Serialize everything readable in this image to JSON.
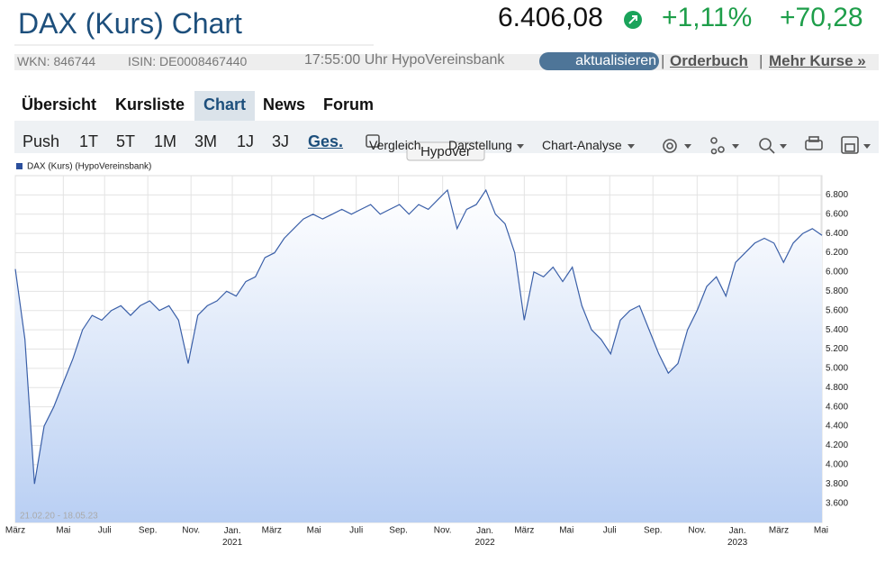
{
  "header": {
    "title": "DAX (Kurs) Chart",
    "price": "6.406,08",
    "change_pct": "+1,11%",
    "change_abs": "+70,28"
  },
  "info": {
    "wkn": "WKN: 846744",
    "isin": "ISIN: DE0008467440",
    "time_source": "17:55:00 Uhr HypoVereinsbank",
    "refresh": "aktualisieren",
    "orderbook": "Orderbuch",
    "more": "Mehr Kurse »"
  },
  "tabs": [
    "Übersicht",
    "Kursliste",
    "Chart",
    "News",
    "Forum"
  ],
  "ranges": [
    "Push",
    "1T",
    "5T",
    "1M",
    "3M",
    "1J",
    "3J",
    "Ges."
  ],
  "menus": [
    "Vergleich",
    "Darstellung",
    "Chart-Analyse"
  ],
  "tooltip": "Hypover",
  "chart_data": {
    "type": "area",
    "date_range": "21.02.20 - 18.05.23",
    "series": [
      {
        "name": "DAX (Kurs) (HypoVereinsbank)",
        "color": "#3a5fa8",
        "values": [
          6030,
          5300,
          3800,
          4400,
          4600,
          4850,
          5100,
          5400,
          5550,
          5500,
          5600,
          5650,
          5550,
          5650,
          5700,
          5600,
          5650,
          5500,
          5050,
          5550,
          5650,
          5700,
          5800,
          5750,
          5900,
          5950,
          6150,
          6200,
          6350,
          6450,
          6550,
          6600,
          6550,
          6600,
          6650,
          6600,
          6650,
          6700,
          6600,
          6650,
          6700,
          6600,
          6700,
          6650,
          6750,
          6850,
          6450,
          6650,
          6700,
          6850,
          6600,
          6500,
          6200,
          5500,
          6000,
          5950,
          6050,
          5900,
          6050,
          5650,
          5400,
          5300,
          5150,
          5500,
          5600,
          5650,
          5400,
          5150,
          4950,
          5050,
          5400,
          5600,
          5850,
          5950,
          5750,
          6100,
          6200,
          6300,
          6350,
          6300,
          6100,
          6300,
          6400,
          6450,
          6380
        ]
      }
    ],
    "xlim": [
      0,
      84
    ],
    "xticks": [
      {
        "value": 0,
        "label": "März"
      },
      {
        "value": 5,
        "label": "Mai"
      },
      {
        "value": 9.3,
        "label": "Juli"
      },
      {
        "value": 13.8,
        "label": "Sep."
      },
      {
        "value": 18.3,
        "label": "Nov."
      },
      {
        "value": 22.6,
        "label": "Jan.\n2021"
      },
      {
        "value": 26.7,
        "label": "März"
      },
      {
        "value": 31.1,
        "label": "Mai"
      },
      {
        "value": 35.5,
        "label": "Juli"
      },
      {
        "value": 39.9,
        "label": "Sep."
      },
      {
        "value": 44.5,
        "label": "Nov."
      },
      {
        "value": 48.9,
        "label": "Jan.\n2022"
      },
      {
        "value": 53,
        "label": "März"
      },
      {
        "value": 57.4,
        "label": "Mai"
      },
      {
        "value": 61.9,
        "label": "Juli"
      },
      {
        "value": 66.4,
        "label": "Sep."
      },
      {
        "value": 71,
        "label": "Nov."
      },
      {
        "value": 75.2,
        "label": "Jan.\n2023"
      },
      {
        "value": 79.5,
        "label": "März"
      },
      {
        "value": 83.9,
        "label": "Mai"
      }
    ],
    "ylim": [
      3400,
      7000
    ],
    "yticks": [
      {
        "value": 3600,
        "label": "3.600"
      },
      {
        "value": 3800,
        "label": "3.800"
      },
      {
        "value": 4000,
        "label": "4.000"
      },
      {
        "value": 4200,
        "label": "4.200"
      },
      {
        "value": 4400,
        "label": "4.400"
      },
      {
        "value": 4600,
        "label": "4.600"
      },
      {
        "value": 4800,
        "label": "4.800"
      },
      {
        "value": 5000,
        "label": "5.000"
      },
      {
        "value": 5200,
        "label": "5.200"
      },
      {
        "value": 5400,
        "label": "5.400"
      },
      {
        "value": 5600,
        "label": "5.600"
      },
      {
        "value": 5800,
        "label": "5.800"
      },
      {
        "value": 6000,
        "label": "6.000"
      },
      {
        "value": 6200,
        "label": "6.200"
      },
      {
        "value": 6400,
        "label": "6.400"
      },
      {
        "value": 6600,
        "label": "6.600"
      },
      {
        "value": 6800,
        "label": "6.800"
      }
    ],
    "grid": true
  }
}
